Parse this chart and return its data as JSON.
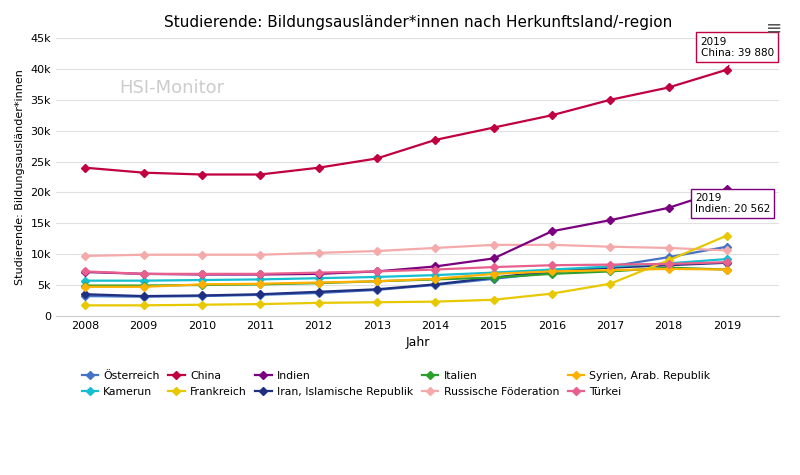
{
  "title": "Studierende: Bildungsausländer*innen nach Herkunftsland/-region",
  "xlabel": "Jahr",
  "ylabel": "Studierende: Bildungsausländer*innen",
  "years": [
    2008,
    2009,
    2010,
    2011,
    2012,
    2013,
    2014,
    2015,
    2016,
    2017,
    2018,
    2019
  ],
  "series": [
    {
      "label": "Österreich",
      "color": "#4472c4",
      "marker": "D",
      "data": [
        3200,
        3100,
        3200,
        3400,
        3700,
        4200,
        5000,
        6000,
        7000,
        8000,
        9500,
        11200
      ]
    },
    {
      "label": "Iran, Islamische Republik",
      "color": "#203080",
      "marker": "D",
      "data": [
        3500,
        3200,
        3300,
        3500,
        3900,
        4300,
        5100,
        6200,
        7200,
        7800,
        8200,
        8600
      ]
    },
    {
      "label": "Kamerun",
      "color": "#17becf",
      "marker": "D",
      "data": [
        5700,
        5700,
        5800,
        5900,
        6100,
        6300,
        6600,
        7000,
        7500,
        8000,
        8500,
        9200
      ]
    },
    {
      "label": "Italien",
      "color": "#2ca02c",
      "marker": "D",
      "data": [
        4900,
        4900,
        5000,
        5100,
        5300,
        5600,
        5900,
        6200,
        6800,
        7200,
        7800,
        7500
      ]
    },
    {
      "label": "China",
      "color": "#c00040",
      "marker": "D",
      "data": [
        24000,
        23200,
        22900,
        22900,
        24000,
        25500,
        28500,
        30500,
        32500,
        35000,
        37000,
        39880
      ]
    },
    {
      "label": "Russische Föderation",
      "color": "#f4aaaa",
      "marker": "D",
      "data": [
        9700,
        9900,
        9900,
        9900,
        10200,
        10500,
        11000,
        11500,
        11500,
        11200,
        11000,
        10600
      ]
    },
    {
      "label": "Frankreich",
      "color": "#e8c800",
      "marker": "D",
      "data": [
        1700,
        1700,
        1800,
        1900,
        2100,
        2200,
        2300,
        2600,
        3600,
        5200,
        9000,
        13000
      ]
    },
    {
      "label": "Syrien, Arab. Republik",
      "color": "#ffb000",
      "marker": "D",
      "data": [
        4700,
        4700,
        5100,
        5200,
        5400,
        5600,
        6000,
        6800,
        7200,
        7400,
        7600,
        7500
      ]
    },
    {
      "label": "Indien",
      "color": "#7b0080",
      "marker": "D",
      "data": [
        7100,
        6800,
        6700,
        6700,
        6800,
        7200,
        8000,
        9300,
        13700,
        15500,
        17500,
        20562
      ]
    },
    {
      "label": "Türkei",
      "color": "#e8608c",
      "marker": "D",
      "data": [
        7200,
        6800,
        6800,
        6800,
        7000,
        7200,
        7500,
        7900,
        8200,
        8300,
        8400,
        8700
      ]
    }
  ],
  "ylim": [
    0,
    45000
  ],
  "yticks": [
    0,
    5000,
    10000,
    15000,
    20000,
    25000,
    30000,
    35000,
    40000,
    45000
  ],
  "ytick_labels": [
    "0",
    "5k",
    "10k",
    "15k",
    "20k",
    "25k",
    "30k",
    "35k",
    "40k",
    "45k"
  ],
  "annotation_china": {
    "year": 2019,
    "value": 39880,
    "text_line1": "2019",
    "text_line2": "China: 39 880"
  },
  "annotation_indien": {
    "year": 2019,
    "value": 20562,
    "text_line1": "2019",
    "text_line2": "Indien: 20 562"
  },
  "background_color": "#ffffff",
  "grid_color": "#e0e0e0",
  "watermark": "HSI-Monitor"
}
